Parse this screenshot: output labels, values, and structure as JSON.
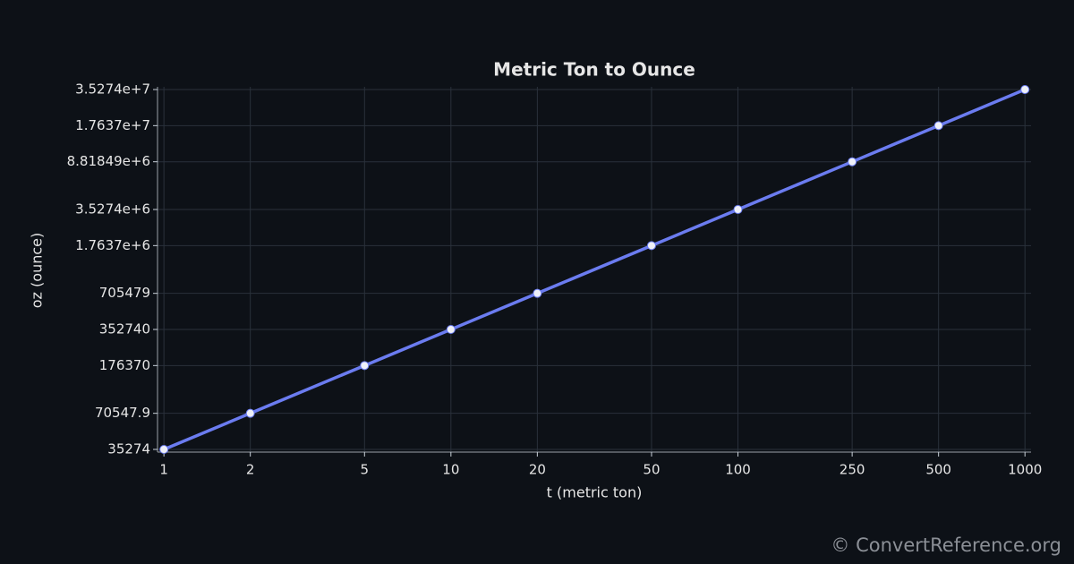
{
  "chart_data": {
    "type": "line",
    "title": "Metric Ton to Ounce",
    "x_label": "t (metric ton)",
    "y_label": "oz (ounce)",
    "x": [
      1,
      2,
      5,
      10,
      20,
      50,
      100,
      250,
      500,
      1000
    ],
    "series": [
      {
        "name": "oz",
        "color": "#6b7cf0",
        "values": [
          35274,
          70547.9,
          176370,
          352740,
          705479,
          1763700,
          3527400,
          8818490,
          17637000,
          35274000
        ]
      }
    ],
    "x_log": true,
    "y_log": true,
    "grid": true,
    "xlim": [
      0.95,
      1050
    ],
    "ylim": [
      33500,
      37150000
    ],
    "xticks": [
      1,
      2,
      5,
      10,
      20,
      50,
      100,
      250,
      500,
      1000
    ],
    "yticks": [
      35274,
      70547.9,
      176370,
      352740,
      705479,
      {
        "value": 1763700,
        "label": "1.7637e+6"
      },
      {
        "value": 3527400,
        "label": "3.5274e+6"
      },
      {
        "value": 8818490,
        "label": "8.81849e+6"
      },
      {
        "value": 17637000,
        "label": "1.7637e+7"
      },
      {
        "value": 35274000,
        "label": "3.5274e+7"
      }
    ],
    "watermark": "© ConvertReference.org"
  }
}
